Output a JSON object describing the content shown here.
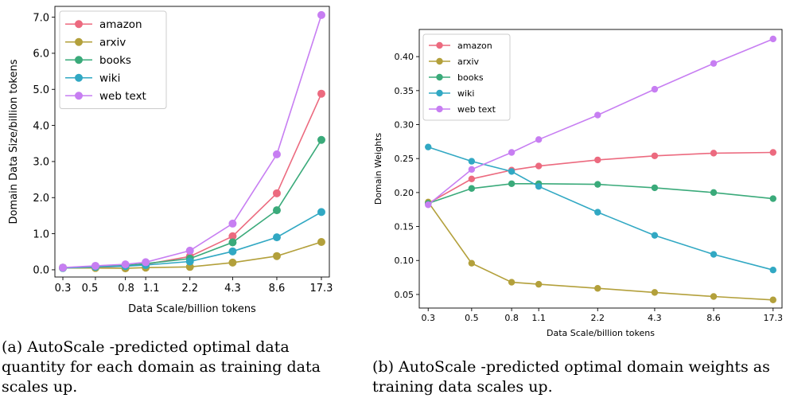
{
  "chart_data": [
    {
      "type": "line",
      "xlabel": "Data Scale/billion tokens",
      "ylabel": "Domain Data Size/billion tokens",
      "x": [
        0.3,
        0.5,
        0.8,
        1.1,
        2.2,
        4.3,
        8.6,
        17.3
      ],
      "x_tick_labels": [
        "0.3",
        "0.5",
        "0.8",
        "1.1",
        "2.2",
        "4.3",
        "8.6",
        "17.3"
      ],
      "x_scale": "log",
      "ylim": [
        -0.2,
        7.3
      ],
      "y_ticks": [
        0.0,
        1.0,
        2.0,
        3.0,
        4.0,
        5.0,
        6.0,
        7.0
      ],
      "y_tick_labels": [
        "0.0",
        "1.0",
        "2.0",
        "3.0",
        "4.0",
        "5.0",
        "6.0",
        "7.0"
      ],
      "grid": false,
      "legend_position": "top-left",
      "series": [
        {
          "name": "amazon",
          "color": "#ec6a7f",
          "values": [
            0.06,
            0.07,
            0.1,
            0.15,
            0.37,
            0.93,
            2.12,
            4.88
          ]
        },
        {
          "name": "arxiv",
          "color": "#b3a03b",
          "values": [
            0.05,
            0.05,
            0.04,
            0.06,
            0.08,
            0.2,
            0.38,
            0.77
          ]
        },
        {
          "name": "books",
          "color": "#3aaa7a",
          "values": [
            0.06,
            0.09,
            0.12,
            0.17,
            0.31,
            0.76,
            1.65,
            3.6
          ]
        },
        {
          "name": "wiki",
          "color": "#31a8c3",
          "values": [
            0.05,
            0.08,
            0.1,
            0.13,
            0.23,
            0.51,
            0.9,
            1.6
          ]
        },
        {
          "name": "web text",
          "color": "#c77ef2",
          "values": [
            0.06,
            0.11,
            0.15,
            0.21,
            0.53,
            1.28,
            3.2,
            7.06
          ]
        }
      ]
    },
    {
      "type": "line",
      "xlabel": "Data Scale/billion tokens",
      "ylabel": "Domain Weights",
      "x": [
        0.3,
        0.5,
        0.8,
        1.1,
        2.2,
        4.3,
        8.6,
        17.3
      ],
      "x_tick_labels": [
        "0.3",
        "0.5",
        "0.8",
        "1.1",
        "2.2",
        "4.3",
        "8.6",
        "17.3"
      ],
      "x_scale": "log",
      "ylim": [
        0.03,
        0.44
      ],
      "y_ticks": [
        0.05,
        0.1,
        0.15,
        0.2,
        0.25,
        0.3,
        0.35,
        0.4
      ],
      "y_tick_labels": [
        "0.05",
        "0.10",
        "0.15",
        "0.20",
        "0.25",
        "0.30",
        "0.35",
        "0.40"
      ],
      "grid": false,
      "legend_position": "top-left",
      "series": [
        {
          "name": "amazon",
          "color": "#ec6a7f",
          "values": [
            0.184,
            0.22,
            0.233,
            0.239,
            0.248,
            0.254,
            0.258,
            0.259
          ]
        },
        {
          "name": "arxiv",
          "color": "#b3a03b",
          "values": [
            0.186,
            0.096,
            0.068,
            0.065,
            0.059,
            0.053,
            0.047,
            0.042
          ]
        },
        {
          "name": "books",
          "color": "#3aaa7a",
          "values": [
            0.184,
            0.206,
            0.213,
            0.213,
            0.212,
            0.207,
            0.2,
            0.191
          ]
        },
        {
          "name": "wiki",
          "color": "#31a8c3",
          "values": [
            0.267,
            0.246,
            0.231,
            0.209,
            0.171,
            0.137,
            0.109,
            0.086
          ]
        },
        {
          "name": "web text",
          "color": "#c77ef2",
          "values": [
            0.182,
            0.234,
            0.259,
            0.278,
            0.314,
            0.352,
            0.39,
            0.426
          ]
        }
      ]
    }
  ],
  "captions": {
    "a": "(a) AutoScale -predicted optimal data quantity for each domain as training data scales up.",
    "b": "(b) AutoScale -predicted optimal domain weights as training data scales up."
  }
}
